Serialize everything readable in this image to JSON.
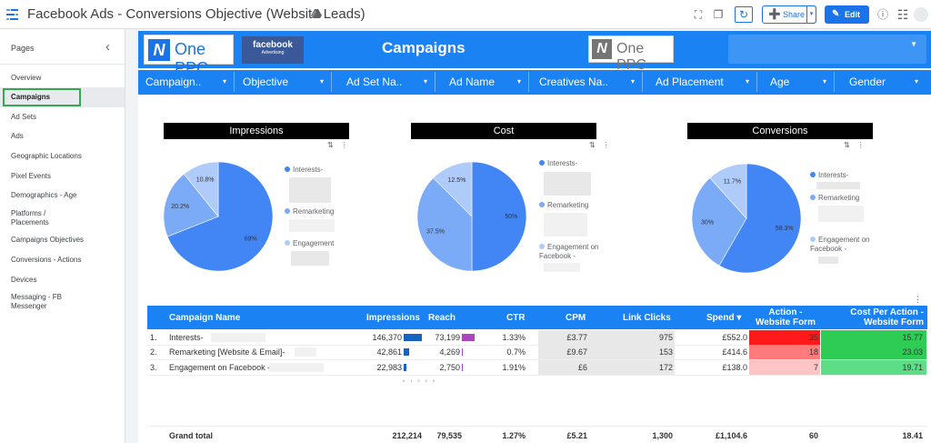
{
  "app": {
    "title": "Facebook Ads - Conversions Objective (Website Leads)",
    "share_label": "Share",
    "edit_label": "Edit"
  },
  "sidebar": {
    "title": "Pages",
    "items": [
      {
        "label": "Overview"
      },
      {
        "label": "Campaigns",
        "active": true
      },
      {
        "label": "Ad Sets"
      },
      {
        "label": "Ads"
      },
      {
        "label": "Geographic Locations"
      },
      {
        "label": "Pixel Events"
      },
      {
        "label": "Demographics - Age"
      },
      {
        "label": "Platforms / Placements"
      },
      {
        "label": "Campaigns Objectives"
      },
      {
        "label": "Conversions - Actions"
      },
      {
        "label": "Devices"
      },
      {
        "label": "Messaging - FB Messenger"
      }
    ]
  },
  "header": {
    "brand_left": "One PPC",
    "facebook_logo": "facebook",
    "facebook_sub": "Advertising",
    "title": "Campaigns",
    "brand_right": "One PPC",
    "accent_color": "#1a82f3"
  },
  "filters": [
    "Campaign..",
    "Objective",
    "Ad Set Na..",
    "Ad Name",
    "Creatives Na..",
    "Ad Placement",
    "Age",
    "Gender"
  ],
  "charts": [
    {
      "title": "Impressions",
      "slices": [
        {
          "label": "Interests-",
          "value": 69,
          "display": "69%"
        },
        {
          "label": "Remarketing",
          "value": 20.2,
          "display": "20.2%"
        },
        {
          "label": "Engagement",
          "value": 10.8,
          "display": "10.8%"
        }
      ]
    },
    {
      "title": "Cost",
      "slices": [
        {
          "label": "Interests-",
          "value": 50,
          "display": "50%"
        },
        {
          "label": "Remarketing",
          "value": 37.5,
          "display": "37.5%"
        },
        {
          "label": "Engagement on Facebook -",
          "value": 12.5,
          "display": "12.5%"
        }
      ]
    },
    {
      "title": "Conversions",
      "slices": [
        {
          "label": "Interests-",
          "value": 58.3,
          "display": "58.3%"
        },
        {
          "label": "Remarketing",
          "value": 30,
          "display": "30%"
        },
        {
          "label": "Engagement on Facebook -",
          "value": 11.7,
          "display": "11.7%"
        }
      ]
    }
  ],
  "slice_colors": [
    "#4285f4",
    "#7baaf7",
    "#aecbfa"
  ],
  "table": {
    "headers": [
      "Campaign Name",
      "Impressions",
      "Reach",
      "CTR",
      "CPM",
      "Link Clicks",
      "Spend ▾",
      "Action - Website Form",
      "Cost Per Action - Website Form"
    ],
    "rows": [
      {
        "idx": "1.",
        "name": "Interests-",
        "impressions": "146,370",
        "impressions_val": 146370,
        "reach": "73,199",
        "reach_val": 73199,
        "ctr": "1.33%",
        "cpm": "£3.77",
        "clicks": "975",
        "spend": "£552.0",
        "action": "35",
        "cpa": "15.77"
      },
      {
        "idx": "2.",
        "name": "Remarketing [Website & Email]-",
        "impressions": "42,861",
        "impressions_val": 42861,
        "reach": "4,269",
        "reach_val": 4269,
        "ctr": "0.7%",
        "cpm": "£9.67",
        "clicks": "153",
        "spend": "£414.6",
        "action": "18",
        "cpa": "23.03"
      },
      {
        "idx": "3.",
        "name": "Engagement on Facebook -",
        "impressions": "22,983",
        "impressions_val": 22983,
        "reach": "2,750",
        "reach_val": 2750,
        "ctr": "1.91%",
        "cpm": "£6",
        "clicks": "172",
        "spend": "£138.0",
        "action": "7",
        "cpa": "19.71"
      }
    ],
    "grand_total": {
      "label": "Grand total",
      "impressions": "212,214",
      "reach": "79,535",
      "ctr": "1.27%",
      "cpm": "£5.21",
      "clicks": "1,300",
      "spend": "£1,104.6",
      "action": "60",
      "cpa": "18.41"
    },
    "mini_axis": [
      "0",
      "100K"
    ],
    "colors": {
      "impressions_bar": "#1565c0",
      "reach_bar": "#ab47bc",
      "action_high": "#ff1a1a",
      "action_mid": "#ff7a7a",
      "action_low": "#ffc4c4",
      "cpa_high": "#2ecc55",
      "cpa_low": "#5cdd86"
    }
  }
}
